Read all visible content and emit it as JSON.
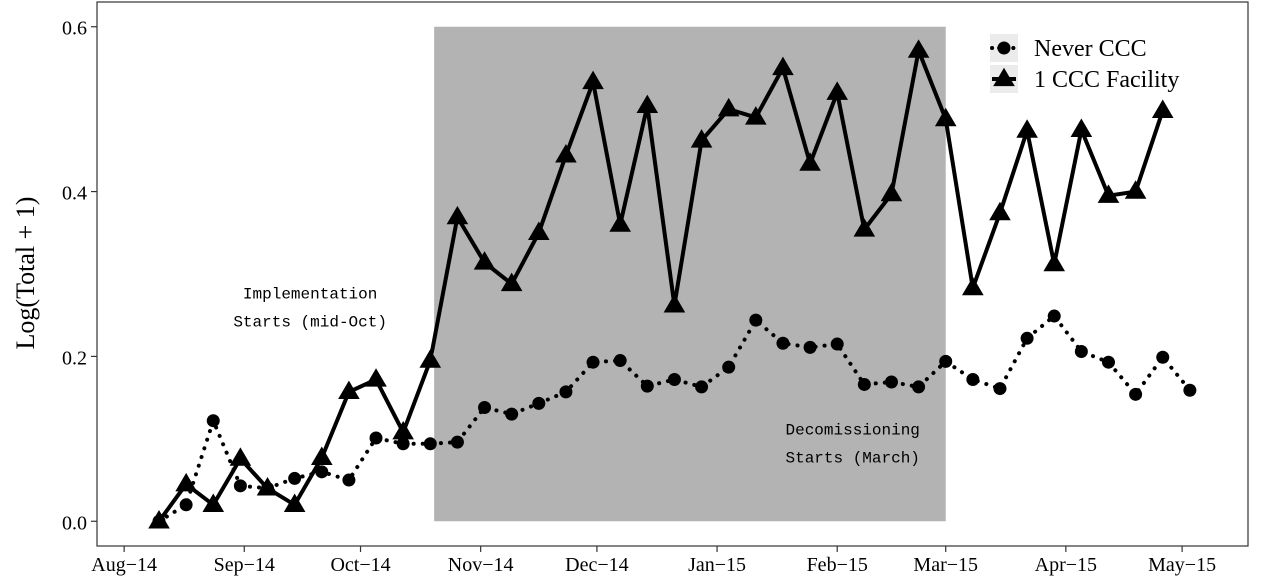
{
  "chart_data": {
    "type": "line",
    "ylabel": "Log(Total + 1)",
    "xlabel": "",
    "ylim": [
      -0.03,
      0.63
    ],
    "xlim": [
      "2014-07-25",
      "2015-05-18"
    ],
    "x_tick_labels": [
      {
        "date": "2014-08-01",
        "label": "Aug−14"
      },
      {
        "date": "2014-09-01",
        "label": "Sep−14"
      },
      {
        "date": "2014-10-01",
        "label": "Oct−14"
      },
      {
        "date": "2014-11-01",
        "label": "Nov−14"
      },
      {
        "date": "2014-12-01",
        "label": "Dec−14"
      },
      {
        "date": "2015-01-01",
        "label": "Jan−15"
      },
      {
        "date": "2015-02-01",
        "label": "Feb−15"
      },
      {
        "date": "2015-03-01",
        "label": "Mar−15"
      },
      {
        "date": "2015-04-01",
        "label": "Apr−15"
      },
      {
        "date": "2015-05-01",
        "label": "May−15"
      }
    ],
    "y_ticks": [
      {
        "value": 0.0,
        "label": "0.0"
      },
      {
        "value": 0.2,
        "label": "0.2"
      },
      {
        "value": 0.4,
        "label": "0.4"
      },
      {
        "value": 0.6,
        "label": "0.6"
      }
    ],
    "shaded_region": {
      "start": "2014-10-20",
      "end": "2015-03-01",
      "ymin": 0.0,
      "ymax": 0.6,
      "color": "#b3b3b3"
    },
    "annotations": [
      {
        "lines": [
          "Implementation",
          "Starts (mid-Oct)"
        ],
        "date": "2014-09-18",
        "y": 0.27
      },
      {
        "lines": [
          "Decomissioning",
          "Starts (March)"
        ],
        "date": "2015-02-05",
        "y": 0.105
      }
    ],
    "legend": {
      "position": "top-right"
    },
    "series": [
      {
        "name": "Never CCC",
        "marker": "circle",
        "line_style": "dotted",
        "points": [
          {
            "x": "2014-08-10",
            "y": 0.0
          },
          {
            "x": "2014-08-17",
            "y": 0.02
          },
          {
            "x": "2014-08-24",
            "y": 0.122
          },
          {
            "x": "2014-08-31",
            "y": 0.043
          },
          {
            "x": "2014-09-07",
            "y": 0.04
          },
          {
            "x": "2014-09-14",
            "y": 0.052
          },
          {
            "x": "2014-09-21",
            "y": 0.06
          },
          {
            "x": "2014-09-28",
            "y": 0.05
          },
          {
            "x": "2014-10-05",
            "y": 0.101
          },
          {
            "x": "2014-10-12",
            "y": 0.094
          },
          {
            "x": "2014-10-19",
            "y": 0.094
          },
          {
            "x": "2014-10-26",
            "y": 0.096
          },
          {
            "x": "2014-11-02",
            "y": 0.138
          },
          {
            "x": "2014-11-09",
            "y": 0.13
          },
          {
            "x": "2014-11-16",
            "y": 0.143
          },
          {
            "x": "2014-11-23",
            "y": 0.157
          },
          {
            "x": "2014-11-30",
            "y": 0.193
          },
          {
            "x": "2014-12-07",
            "y": 0.195
          },
          {
            "x": "2014-12-14",
            "y": 0.164
          },
          {
            "x": "2014-12-21",
            "y": 0.172
          },
          {
            "x": "2014-12-28",
            "y": 0.163
          },
          {
            "x": "2015-01-04",
            "y": 0.187
          },
          {
            "x": "2015-01-11",
            "y": 0.244
          },
          {
            "x": "2015-01-18",
            "y": 0.216
          },
          {
            "x": "2015-01-25",
            "y": 0.211
          },
          {
            "x": "2015-02-01",
            "y": 0.215
          },
          {
            "x": "2015-02-08",
            "y": 0.166
          },
          {
            "x": "2015-02-15",
            "y": 0.169
          },
          {
            "x": "2015-02-22",
            "y": 0.163
          },
          {
            "x": "2015-03-01",
            "y": 0.194
          },
          {
            "x": "2015-03-08",
            "y": 0.172
          },
          {
            "x": "2015-03-15",
            "y": 0.161
          },
          {
            "x": "2015-03-22",
            "y": 0.222
          },
          {
            "x": "2015-03-29",
            "y": 0.249
          },
          {
            "x": "2015-04-05",
            "y": 0.206
          },
          {
            "x": "2015-04-12",
            "y": 0.193
          },
          {
            "x": "2015-04-19",
            "y": 0.154
          },
          {
            "x": "2015-04-26",
            "y": 0.199
          },
          {
            "x": "2015-05-03",
            "y": 0.159
          }
        ]
      },
      {
        "name": "1 CCC Facility",
        "marker": "triangle",
        "line_style": "solid",
        "points": [
          {
            "x": "2014-08-10",
            "y": 0.0
          },
          {
            "x": "2014-08-17",
            "y": 0.045
          },
          {
            "x": "2014-08-24",
            "y": 0.02
          },
          {
            "x": "2014-08-31",
            "y": 0.076
          },
          {
            "x": "2014-09-07",
            "y": 0.04
          },
          {
            "x": "2014-09-14",
            "y": 0.02
          },
          {
            "x": "2014-09-21",
            "y": 0.077
          },
          {
            "x": "2014-09-28",
            "y": 0.157
          },
          {
            "x": "2014-10-05",
            "y": 0.172
          },
          {
            "x": "2014-10-12",
            "y": 0.108
          },
          {
            "x": "2014-10-19",
            "y": 0.195
          },
          {
            "x": "2014-10-26",
            "y": 0.369
          },
          {
            "x": "2014-11-02",
            "y": 0.314
          },
          {
            "x": "2014-11-09",
            "y": 0.288
          },
          {
            "x": "2014-11-16",
            "y": 0.35
          },
          {
            "x": "2014-11-23",
            "y": 0.444
          },
          {
            "x": "2014-11-30",
            "y": 0.533
          },
          {
            "x": "2014-12-07",
            "y": 0.36
          },
          {
            "x": "2014-12-14",
            "y": 0.504
          },
          {
            "x": "2014-12-21",
            "y": 0.262
          },
          {
            "x": "2014-12-28",
            "y": 0.462
          },
          {
            "x": "2015-01-04",
            "y": 0.5
          },
          {
            "x": "2015-01-11",
            "y": 0.49
          },
          {
            "x": "2015-01-18",
            "y": 0.55
          },
          {
            "x": "2015-01-25",
            "y": 0.434
          },
          {
            "x": "2015-02-01",
            "y": 0.52
          },
          {
            "x": "2015-02-08",
            "y": 0.354
          },
          {
            "x": "2015-02-15",
            "y": 0.397
          },
          {
            "x": "2015-02-22",
            "y": 0.571
          },
          {
            "x": "2015-03-01",
            "y": 0.488
          },
          {
            "x": "2015-03-08",
            "y": 0.283
          },
          {
            "x": "2015-03-15",
            "y": 0.374
          },
          {
            "x": "2015-03-22",
            "y": 0.474
          },
          {
            "x": "2015-03-29",
            "y": 0.312
          },
          {
            "x": "2015-04-05",
            "y": 0.475
          },
          {
            "x": "2015-04-12",
            "y": 0.395
          },
          {
            "x": "2015-04-19",
            "y": 0.4
          },
          {
            "x": "2015-04-26",
            "y": 0.498
          }
        ]
      }
    ]
  }
}
